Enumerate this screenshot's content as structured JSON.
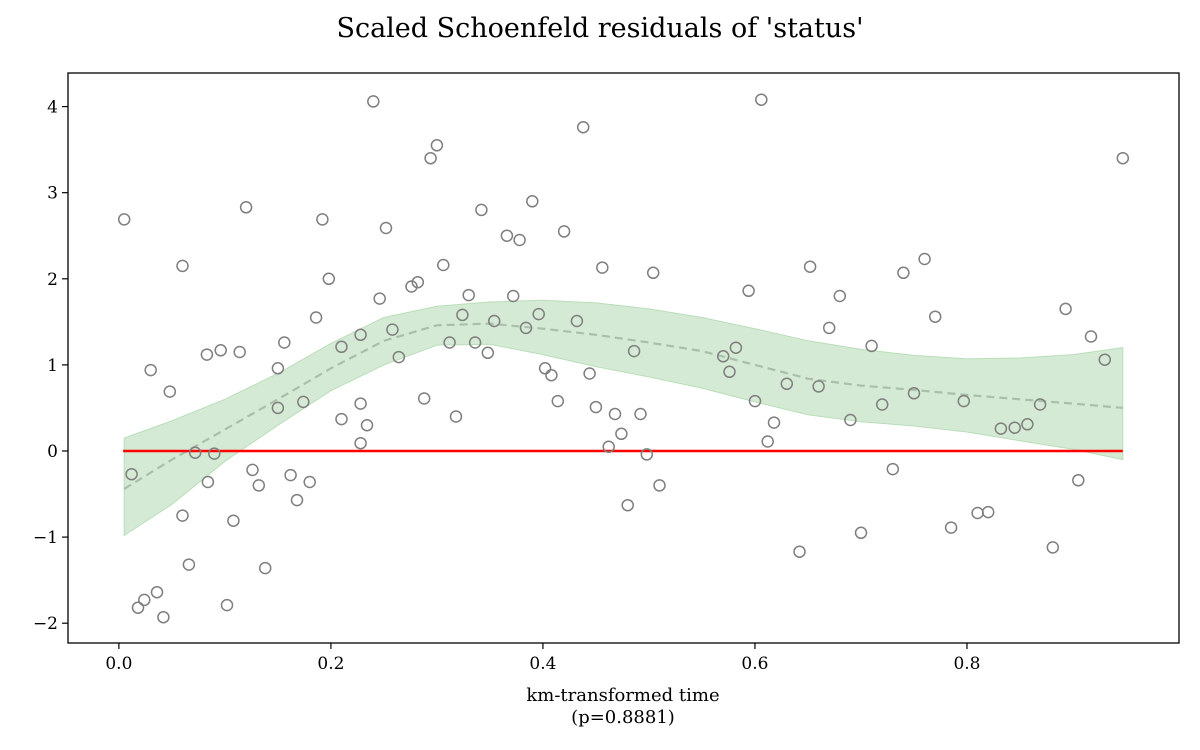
{
  "chart_data": {
    "type": "scatter",
    "title": "Scaled Schoenfeld residuals of 'status'",
    "xlabel_lines": [
      "km-transformed time",
      "(p=0.8881)"
    ],
    "xlim": [
      -0.048,
      1.0
    ],
    "ylim": [
      -2.23,
      4.39
    ],
    "x_ticks": [
      0.0,
      0.2,
      0.4,
      0.6,
      0.8
    ],
    "x_tick_labels": [
      "0.0",
      "0.2",
      "0.4",
      "0.6",
      "0.8"
    ],
    "y_ticks": [
      -2,
      -1,
      0,
      1,
      2,
      3,
      4
    ],
    "y_tick_labels": [
      "−2",
      "−1",
      "0",
      "1",
      "2",
      "3",
      "4"
    ],
    "grid": false,
    "legend": "none",
    "colors": {
      "points": "#7f7f7f",
      "zero_line": "#ff0000",
      "smooth_line": "#a9bfa9",
      "band_fill": "#d5ead5",
      "band_edge": "#b9deb9"
    },
    "points": [
      {
        "x": 0.005,
        "y": 2.69
      },
      {
        "x": 0.012,
        "y": -0.27
      },
      {
        "x": 0.018,
        "y": -1.82
      },
      {
        "x": 0.024,
        "y": -1.73
      },
      {
        "x": 0.03,
        "y": 0.94
      },
      {
        "x": 0.036,
        "y": -1.64
      },
      {
        "x": 0.042,
        "y": -1.93
      },
      {
        "x": 0.048,
        "y": 0.69
      },
      {
        "x": 0.06,
        "y": 2.15
      },
      {
        "x": 0.06,
        "y": -0.75
      },
      {
        "x": 0.066,
        "y": -1.32
      },
      {
        "x": 0.072,
        "y": -0.02
      },
      {
        "x": 0.083,
        "y": 1.12
      },
      {
        "x": 0.084,
        "y": -0.36
      },
      {
        "x": 0.09,
        "y": -0.03
      },
      {
        "x": 0.096,
        "y": 1.17
      },
      {
        "x": 0.102,
        "y": -1.79
      },
      {
        "x": 0.108,
        "y": -0.81
      },
      {
        "x": 0.114,
        "y": 1.15
      },
      {
        "x": 0.12,
        "y": 2.83
      },
      {
        "x": 0.126,
        "y": -0.22
      },
      {
        "x": 0.132,
        "y": -0.4
      },
      {
        "x": 0.138,
        "y": -1.36
      },
      {
        "x": 0.15,
        "y": 0.96
      },
      {
        "x": 0.15,
        "y": 0.5
      },
      {
        "x": 0.156,
        "y": 1.26
      },
      {
        "x": 0.162,
        "y": -0.28
      },
      {
        "x": 0.168,
        "y": -0.57
      },
      {
        "x": 0.174,
        "y": 0.57
      },
      {
        "x": 0.18,
        "y": -0.36
      },
      {
        "x": 0.186,
        "y": 1.55
      },
      {
        "x": 0.192,
        "y": 2.69
      },
      {
        "x": 0.198,
        "y": 2.0
      },
      {
        "x": 0.21,
        "y": 1.21
      },
      {
        "x": 0.21,
        "y": 0.37
      },
      {
        "x": 0.228,
        "y": 1.35
      },
      {
        "x": 0.228,
        "y": 0.55
      },
      {
        "x": 0.228,
        "y": 0.09
      },
      {
        "x": 0.234,
        "y": 0.3
      },
      {
        "x": 0.24,
        "y": 4.06
      },
      {
        "x": 0.246,
        "y": 1.77
      },
      {
        "x": 0.252,
        "y": 2.59
      },
      {
        "x": 0.258,
        "y": 1.41
      },
      {
        "x": 0.264,
        "y": 1.09
      },
      {
        "x": 0.276,
        "y": 1.91
      },
      {
        "x": 0.282,
        "y": 1.96
      },
      {
        "x": 0.288,
        "y": 0.61
      },
      {
        "x": 0.294,
        "y": 3.4
      },
      {
        "x": 0.3,
        "y": 3.55
      },
      {
        "x": 0.306,
        "y": 2.16
      },
      {
        "x": 0.312,
        "y": 1.26
      },
      {
        "x": 0.318,
        "y": 0.4
      },
      {
        "x": 0.324,
        "y": 1.58
      },
      {
        "x": 0.33,
        "y": 1.81
      },
      {
        "x": 0.336,
        "y": 1.26
      },
      {
        "x": 0.342,
        "y": 2.8
      },
      {
        "x": 0.348,
        "y": 1.14
      },
      {
        "x": 0.354,
        "y": 1.51
      },
      {
        "x": 0.366,
        "y": 2.5
      },
      {
        "x": 0.372,
        "y": 1.8
      },
      {
        "x": 0.378,
        "y": 2.45
      },
      {
        "x": 0.384,
        "y": 1.43
      },
      {
        "x": 0.39,
        "y": 2.9
      },
      {
        "x": 0.396,
        "y": 1.59
      },
      {
        "x": 0.402,
        "y": 0.96
      },
      {
        "x": 0.408,
        "y": 0.88
      },
      {
        "x": 0.414,
        "y": 0.58
      },
      {
        "x": 0.42,
        "y": 2.55
      },
      {
        "x": 0.432,
        "y": 1.51
      },
      {
        "x": 0.438,
        "y": 3.76
      },
      {
        "x": 0.444,
        "y": 0.9
      },
      {
        "x": 0.45,
        "y": 0.51
      },
      {
        "x": 0.456,
        "y": 2.13
      },
      {
        "x": 0.462,
        "y": 0.05
      },
      {
        "x": 0.468,
        "y": 0.43
      },
      {
        "x": 0.474,
        "y": 0.2
      },
      {
        "x": 0.48,
        "y": -0.63
      },
      {
        "x": 0.486,
        "y": 1.16
      },
      {
        "x": 0.492,
        "y": 0.43
      },
      {
        "x": 0.498,
        "y": -0.04
      },
      {
        "x": 0.504,
        "y": 2.07
      },
      {
        "x": 0.51,
        "y": -0.4
      },
      {
        "x": 0.57,
        "y": 1.1
      },
      {
        "x": 0.576,
        "y": 0.92
      },
      {
        "x": 0.582,
        "y": 1.2
      },
      {
        "x": 0.594,
        "y": 1.86
      },
      {
        "x": 0.6,
        "y": 0.58
      },
      {
        "x": 0.606,
        "y": 4.08
      },
      {
        "x": 0.612,
        "y": 0.11
      },
      {
        "x": 0.618,
        "y": 0.33
      },
      {
        "x": 0.63,
        "y": 0.78
      },
      {
        "x": 0.642,
        "y": -1.17
      },
      {
        "x": 0.652,
        "y": 2.14
      },
      {
        "x": 0.66,
        "y": 0.75
      },
      {
        "x": 0.67,
        "y": 1.43
      },
      {
        "x": 0.68,
        "y": 1.8
      },
      {
        "x": 0.69,
        "y": 0.36
      },
      {
        "x": 0.7,
        "y": -0.95
      },
      {
        "x": 0.71,
        "y": 1.22
      },
      {
        "x": 0.72,
        "y": 0.54
      },
      {
        "x": 0.73,
        "y": -0.21
      },
      {
        "x": 0.74,
        "y": 2.07
      },
      {
        "x": 0.75,
        "y": 0.67
      },
      {
        "x": 0.76,
        "y": 2.23
      },
      {
        "x": 0.77,
        "y": 1.56
      },
      {
        "x": 0.785,
        "y": -0.89
      },
      {
        "x": 0.797,
        "y": 0.58
      },
      {
        "x": 0.81,
        "y": -0.72
      },
      {
        "x": 0.82,
        "y": -0.71
      },
      {
        "x": 0.832,
        "y": 0.26
      },
      {
        "x": 0.845,
        "y": 0.27
      },
      {
        "x": 0.857,
        "y": 0.31
      },
      {
        "x": 0.869,
        "y": 0.54
      },
      {
        "x": 0.881,
        "y": -1.12
      },
      {
        "x": 0.893,
        "y": 1.65
      },
      {
        "x": 0.905,
        "y": -0.34
      },
      {
        "x": 0.917,
        "y": 1.33
      },
      {
        "x": 0.93,
        "y": 1.06
      },
      {
        "x": 0.947,
        "y": 3.4
      }
    ],
    "zero_line": {
      "x": [
        0.004,
        0.947
      ],
      "y": 0
    },
    "smooth_line": {
      "x": [
        0.005,
        0.05,
        0.1,
        0.15,
        0.2,
        0.25,
        0.3,
        0.35,
        0.4,
        0.45,
        0.5,
        0.55,
        0.6,
        0.65,
        0.7,
        0.75,
        0.8,
        0.85,
        0.9,
        0.947
      ],
      "y": [
        -0.44,
        -0.1,
        0.25,
        0.6,
        0.96,
        1.28,
        1.46,
        1.48,
        1.42,
        1.35,
        1.26,
        1.16,
        1.0,
        0.84,
        0.76,
        0.71,
        0.65,
        0.6,
        0.55,
        0.5
      ]
    },
    "band": {
      "x": [
        0.005,
        0.05,
        0.1,
        0.15,
        0.2,
        0.25,
        0.3,
        0.35,
        0.4,
        0.45,
        0.5,
        0.55,
        0.6,
        0.65,
        0.7,
        0.75,
        0.8,
        0.85,
        0.9,
        0.947
      ],
      "upper": [
        0.15,
        0.35,
        0.6,
        0.9,
        1.25,
        1.55,
        1.68,
        1.73,
        1.75,
        1.72,
        1.65,
        1.55,
        1.42,
        1.28,
        1.18,
        1.11,
        1.07,
        1.08,
        1.12,
        1.2
      ],
      "lower": [
        -0.98,
        -0.62,
        -0.12,
        0.3,
        0.7,
        1.0,
        1.23,
        1.24,
        1.12,
        0.98,
        0.86,
        0.73,
        0.57,
        0.42,
        0.34,
        0.29,
        0.22,
        0.12,
        0.02,
        -0.1
      ]
    }
  }
}
